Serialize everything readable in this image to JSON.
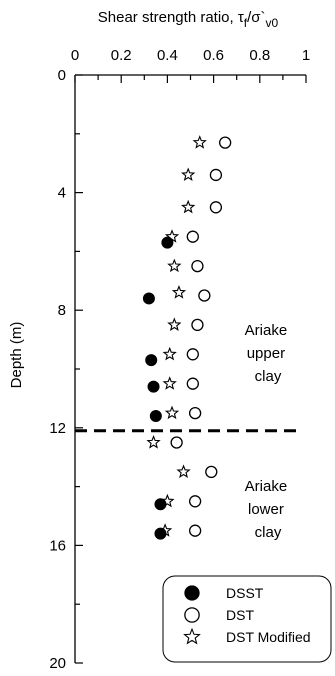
{
  "chart_data": {
    "type": "scatter",
    "xlabel": "Shear strength ratio, τ",
    "xlabel_sub1": "f",
    "xlabel_sep": "/σ`",
    "xlabel_sub2": "v0",
    "ylabel": "Depth (m)",
    "xlim": [
      0,
      1
    ],
    "ylim": [
      0,
      20
    ],
    "y_inverted": true,
    "x_axis_position": "top",
    "x_ticks": [
      0,
      0.2,
      0.4,
      0.6,
      0.8,
      1
    ],
    "x_tick_labels": [
      "0",
      "0.2",
      "0.4",
      "0.6",
      "0.8",
      "1"
    ],
    "y_ticks": [
      0,
      4,
      8,
      12,
      16,
      20
    ],
    "y_tick_labels": [
      "0",
      "4",
      "8",
      "12",
      "16",
      "20"
    ],
    "grid": false,
    "legend_position": "bottom-right",
    "series": [
      {
        "name": "DSST",
        "marker": "filled-circle",
        "points": [
          {
            "x": 0.4,
            "y": 5.7
          },
          {
            "x": 0.32,
            "y": 7.6
          },
          {
            "x": 0.33,
            "y": 9.7
          },
          {
            "x": 0.34,
            "y": 10.6
          },
          {
            "x": 0.35,
            "y": 11.6
          },
          {
            "x": 0.37,
            "y": 14.6
          },
          {
            "x": 0.37,
            "y": 15.6
          }
        ]
      },
      {
        "name": "DST",
        "marker": "open-circle",
        "points": [
          {
            "x": 0.65,
            "y": 2.3
          },
          {
            "x": 0.61,
            "y": 3.4
          },
          {
            "x": 0.61,
            "y": 4.5
          },
          {
            "x": 0.51,
            "y": 5.5
          },
          {
            "x": 0.53,
            "y": 6.5
          },
          {
            "x": 0.56,
            "y": 7.5
          },
          {
            "x": 0.53,
            "y": 8.5
          },
          {
            "x": 0.51,
            "y": 9.5
          },
          {
            "x": 0.51,
            "y": 10.5
          },
          {
            "x": 0.52,
            "y": 11.5
          },
          {
            "x": 0.44,
            "y": 12.5
          },
          {
            "x": 0.59,
            "y": 13.5
          },
          {
            "x": 0.52,
            "y": 14.5
          },
          {
            "x": 0.52,
            "y": 15.5
          }
        ]
      },
      {
        "name": "DST Modified",
        "marker": "open-star",
        "points": [
          {
            "x": 0.54,
            "y": 2.3
          },
          {
            "x": 0.49,
            "y": 3.4
          },
          {
            "x": 0.49,
            "y": 4.5
          },
          {
            "x": 0.42,
            "y": 5.5
          },
          {
            "x": 0.43,
            "y": 6.5
          },
          {
            "x": 0.45,
            "y": 7.4
          },
          {
            "x": 0.43,
            "y": 8.5
          },
          {
            "x": 0.41,
            "y": 9.5
          },
          {
            "x": 0.41,
            "y": 10.5
          },
          {
            "x": 0.42,
            "y": 11.5
          },
          {
            "x": 0.34,
            "y": 12.5
          },
          {
            "x": 0.47,
            "y": 13.5
          },
          {
            "x": 0.4,
            "y": 14.5
          },
          {
            "x": 0.39,
            "y": 15.5
          }
        ]
      }
    ],
    "reference_lines": [
      {
        "orientation": "horizontal",
        "y": 12.1,
        "style": "dashed"
      }
    ],
    "annotations": [
      {
        "lines": [
          "Ariake",
          "upper",
          "clay"
        ]
      },
      {
        "lines": [
          "Ariake",
          "lower",
          "clay"
        ]
      }
    ]
  }
}
